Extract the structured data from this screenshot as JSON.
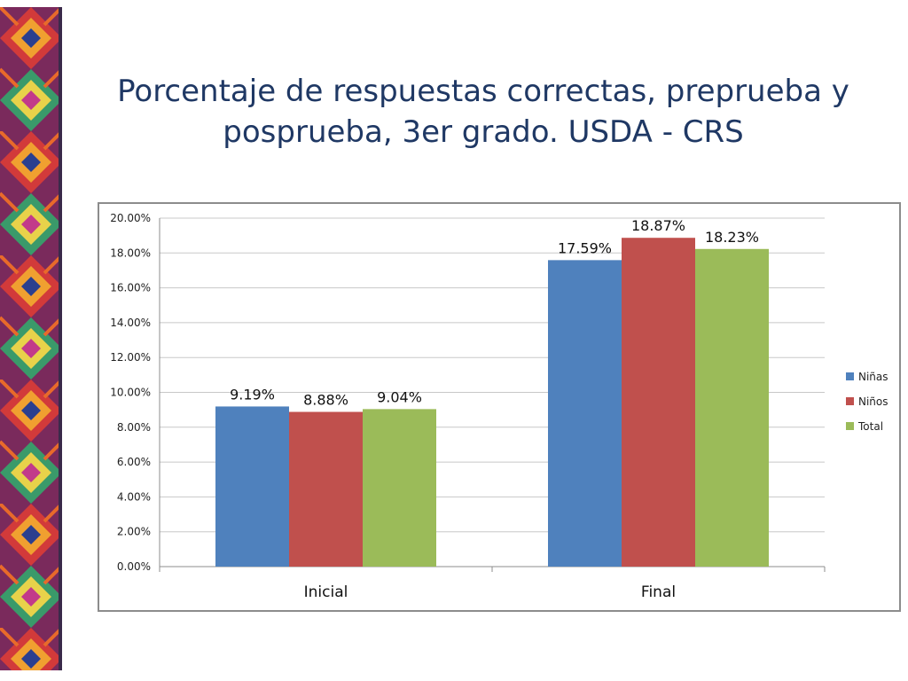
{
  "slide": {
    "title": "Porcentaje de respuestas correctas, preprueba y posprueba, 3er grado. USDA - CRS"
  },
  "decoration": {
    "border_icon": "woven-textile-strip"
  },
  "chart_data": {
    "type": "bar",
    "categories": [
      "Inicial",
      "Final"
    ],
    "series": [
      {
        "name": "Niñas",
        "values": [
          9.19,
          17.59
        ],
        "labels": [
          "9.19%",
          "17.59%"
        ],
        "color": "#4f81bd"
      },
      {
        "name": "Niños",
        "values": [
          8.88,
          18.87
        ],
        "labels": [
          "8.88%",
          "18.87%"
        ],
        "color": "#c0504d"
      },
      {
        "name": "Total",
        "values": [
          9.04,
          18.23
        ],
        "labels": [
          "9.04%",
          "18.23%"
        ],
        "color": "#9bbb59"
      }
    ],
    "ylim": [
      0,
      20
    ],
    "yticks": [
      "0.00%",
      "2.00%",
      "4.00%",
      "6.00%",
      "8.00%",
      "10.00%",
      "12.00%",
      "14.00%",
      "16.00%",
      "18.00%",
      "20.00%"
    ],
    "title": "",
    "xlabel": "",
    "ylabel": "",
    "grid": true,
    "legend": "right"
  }
}
